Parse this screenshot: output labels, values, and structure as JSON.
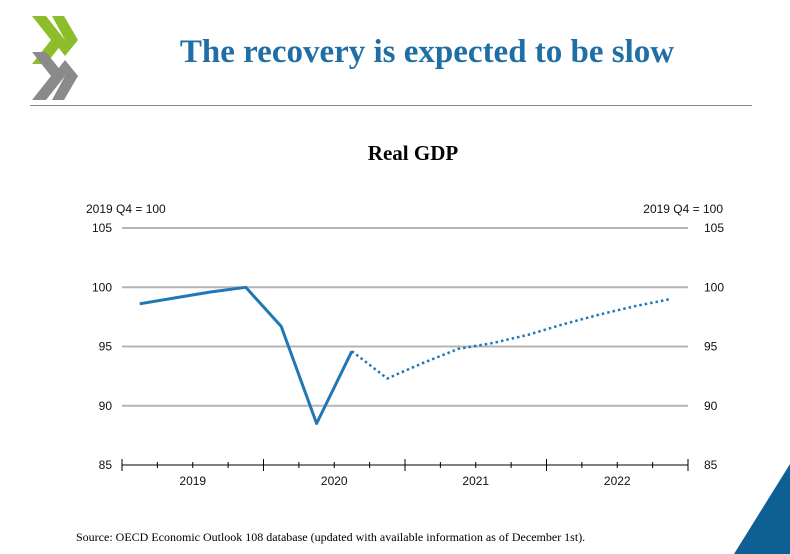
{
  "slide": {
    "title": "The recovery is expected to be slow",
    "source": "Source: OECD Economic Outlook 108 database (updated with available information as of December 1st)."
  },
  "colors": {
    "title": "#1f6fa6",
    "series": "#1f78b4",
    "logo_green": "#8cbe2c",
    "logo_grey": "#8a8a8a",
    "corner": "#0d5f94",
    "gridline": "#b4b4b4"
  },
  "icons": {
    "logo": "oecd-chevrons-logo",
    "corner": "blue-triangle-decoration"
  },
  "chart_data": {
    "type": "line",
    "title": "Real GDP",
    "ylabel_left": "2019 Q4 = 100",
    "ylabel_right": "2019 Q4 = 100",
    "xlabel": "",
    "ylim": [
      85,
      105
    ],
    "yticks": [
      85,
      90,
      95,
      100,
      105
    ],
    "grid": true,
    "x_year_labels": [
      "2019",
      "2020",
      "2021",
      "2022"
    ],
    "quarters": [
      "2019 Q1",
      "2019 Q2",
      "2019 Q3",
      "2019 Q4",
      "2020 Q1",
      "2020 Q2",
      "2020 Q3",
      "2020 Q4",
      "2021 Q1",
      "2021 Q2",
      "2021 Q3",
      "2021 Q4",
      "2022 Q1",
      "2022 Q2",
      "2022 Q3",
      "2022 Q4"
    ],
    "series": [
      {
        "style": "solid",
        "values": [
          98.6,
          99.1,
          99.6,
          100.0,
          96.7,
          88.5,
          94.6,
          null,
          null,
          null,
          null,
          null,
          null,
          null,
          null,
          null
        ]
      },
      {
        "style": "dotted",
        "values": [
          null,
          null,
          null,
          null,
          null,
          null,
          94.6,
          92.3,
          93.6,
          94.8,
          95.3,
          96.0,
          96.9,
          97.7,
          98.4,
          99.0
        ]
      }
    ]
  }
}
